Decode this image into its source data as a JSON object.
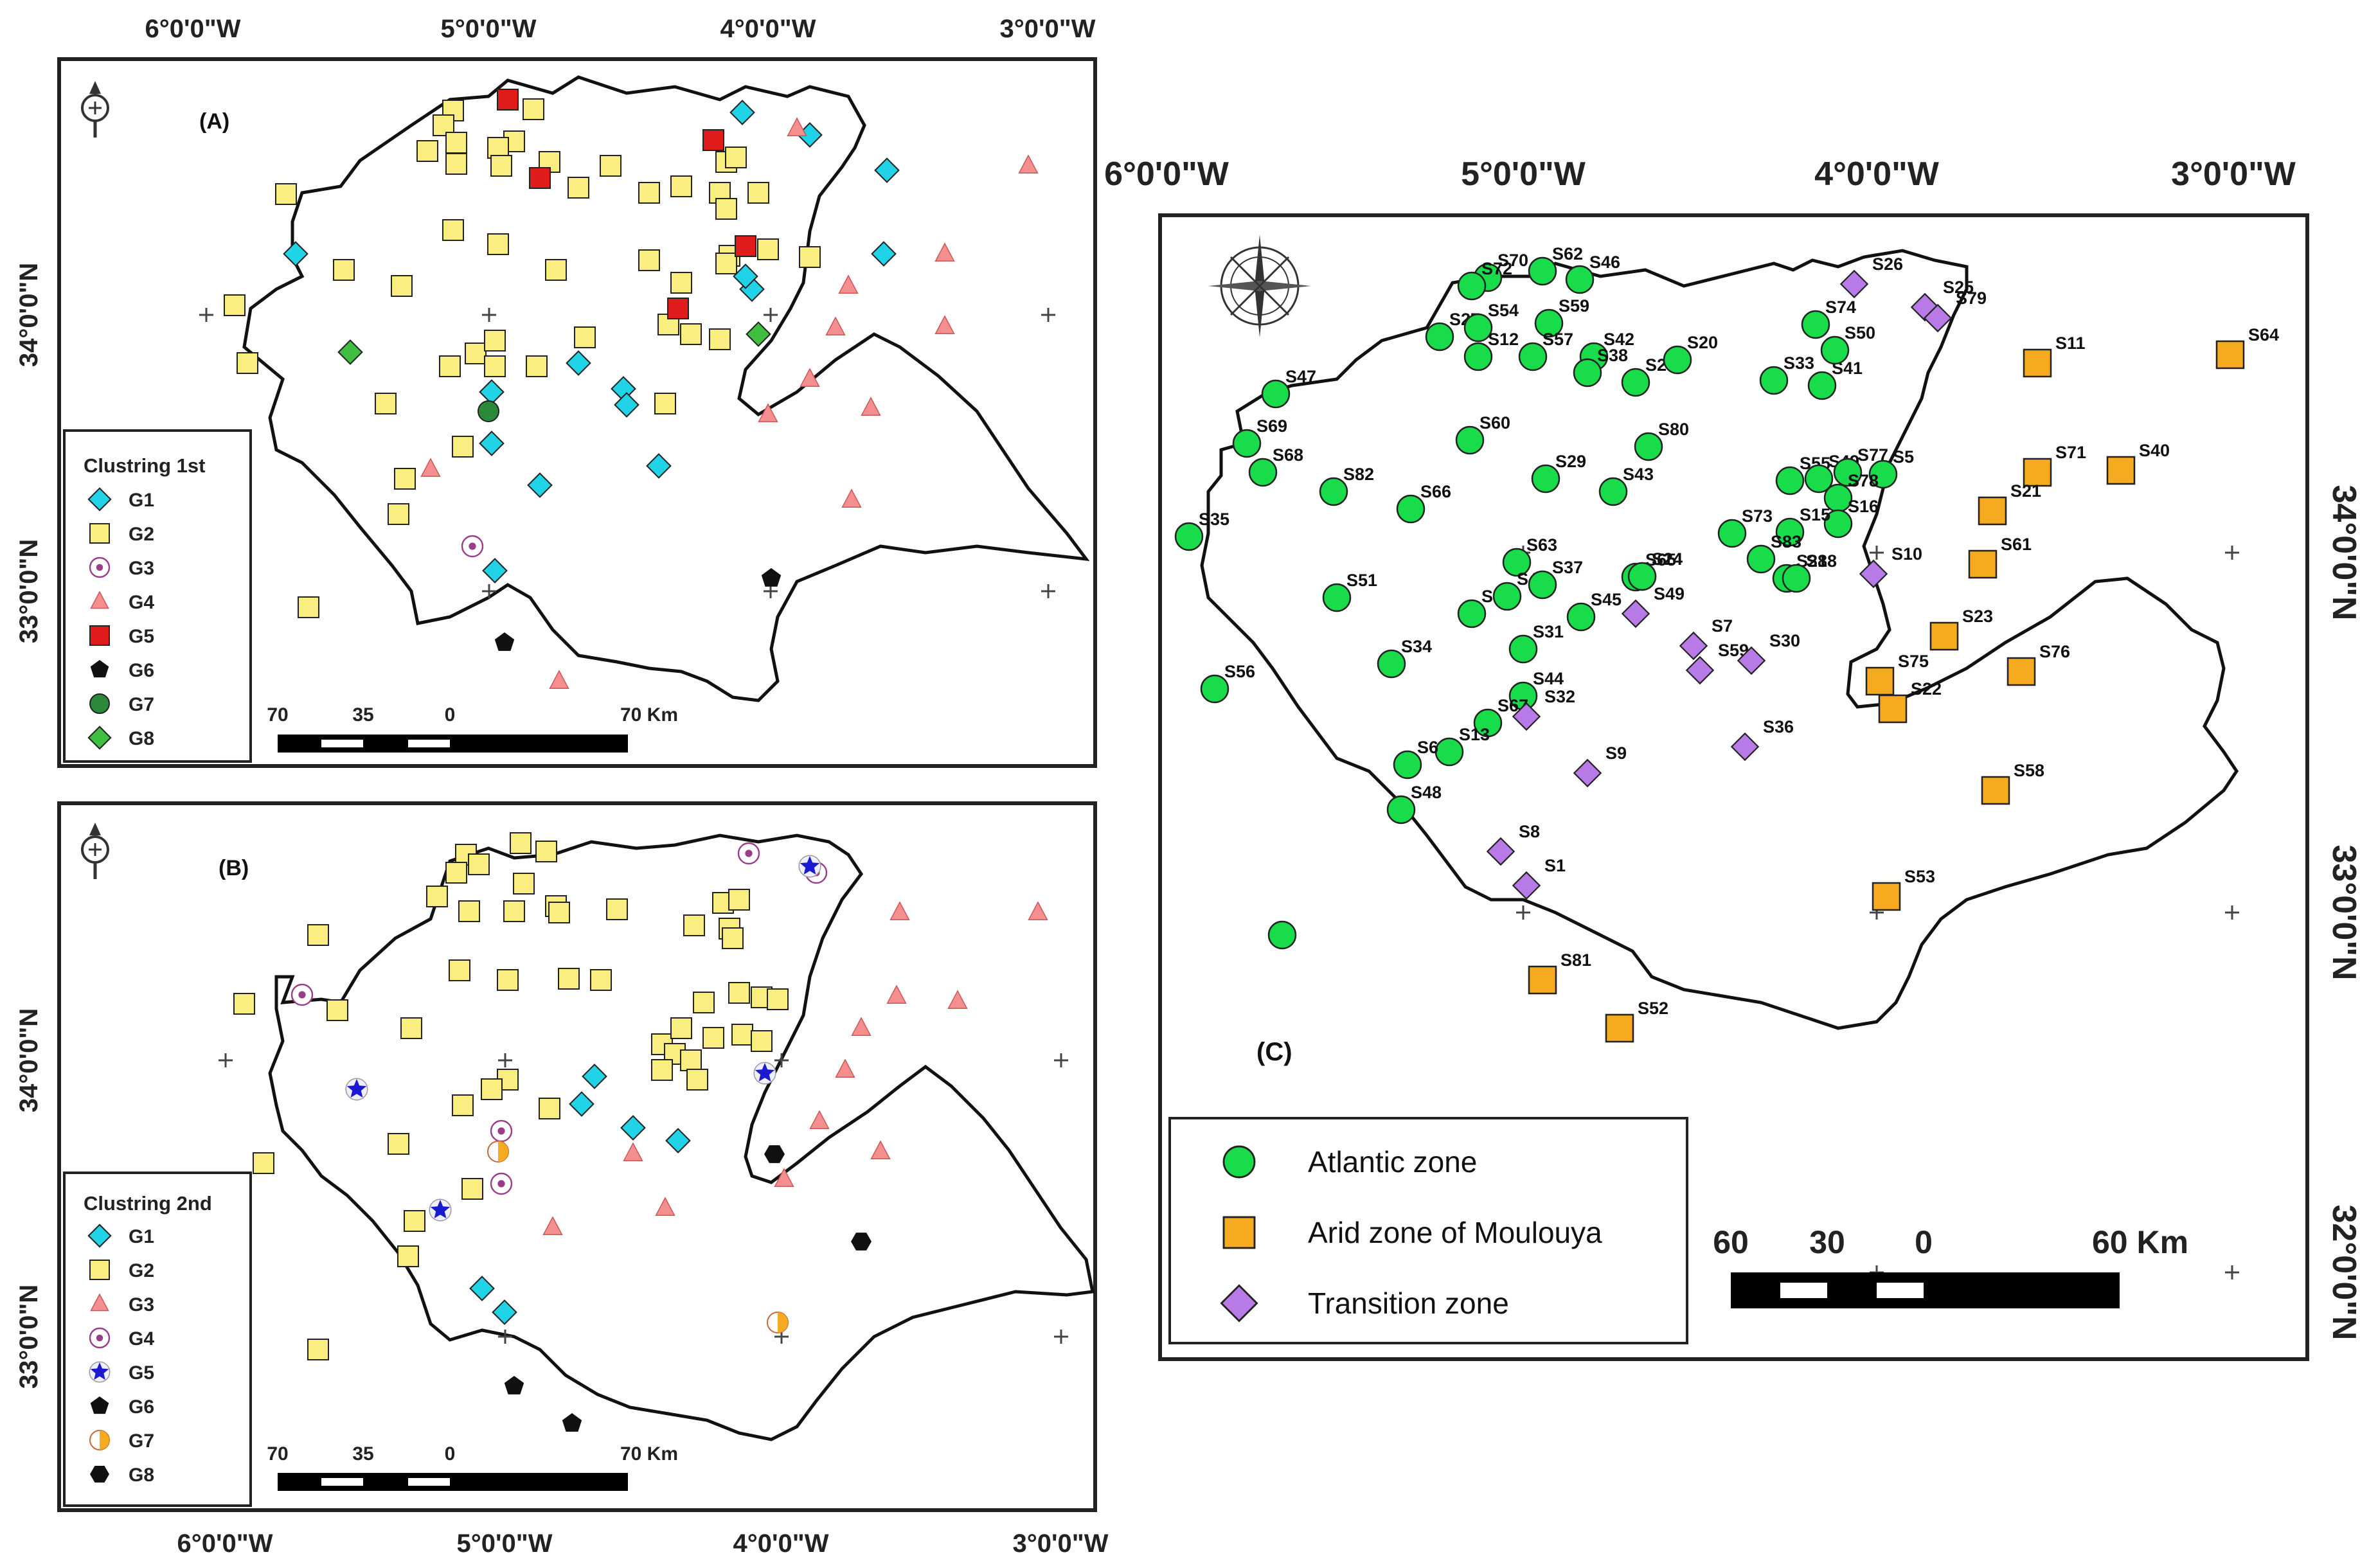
{
  "colors": {
    "cyan": "#21d3e6",
    "yellow": "#fbee80",
    "purple": "#9a3c8a",
    "pink": "#f58f8f",
    "red": "#e01b1b",
    "black": "#111111",
    "dgreen": "#2b8a3a",
    "lgreen": "#3fbf3f",
    "blue": "#1a1ad0",
    "orange": "#f6aa20",
    "violet": "#b77ae6",
    "bgreen": "#18dc4a"
  },
  "map_a": {
    "panel_label": "(A)",
    "top_coords": [
      "6°0'0\"W",
      "5°0'0\"W",
      "4°0'0\"W",
      "3°0'0\"W"
    ],
    "left_coords": [
      "34°0'0\"N",
      "33°0'0\"N"
    ],
    "scale": {
      "ticks": [
        "70",
        "35",
        "0"
      ],
      "end": "70 Km"
    },
    "legend_title": "Clustring 1st",
    "legend": [
      {
        "group": "G1",
        "shape": "diamond",
        "color": "cyan"
      },
      {
        "group": "G2",
        "shape": "square",
        "color": "yellow"
      },
      {
        "group": "G3",
        "shape": "ring",
        "color": "purple"
      },
      {
        "group": "G4",
        "shape": "triangle",
        "color": "pink"
      },
      {
        "group": "G5",
        "shape": "square",
        "color": "red"
      },
      {
        "group": "G6",
        "shape": "pentagon",
        "color": "black"
      },
      {
        "group": "G7",
        "shape": "circle",
        "color": "dgreen"
      },
      {
        "group": "G8",
        "shape": "diamond",
        "color": "lgreen"
      }
    ]
  },
  "map_b": {
    "panel_label": "(B)",
    "bottom_coords": [
      "6°0'0\"W",
      "5°0'0\"W",
      "4°0'0\"W",
      "3°0'0\"W"
    ],
    "left_coords": [
      "34°0'0\"N",
      "33°0'0\"N"
    ],
    "scale": {
      "ticks": [
        "70",
        "35",
        "0"
      ],
      "end": "70 Km"
    },
    "legend_title": "Clustring 2nd",
    "legend": [
      {
        "group": "G1",
        "shape": "diamond",
        "color": "cyan"
      },
      {
        "group": "G2",
        "shape": "square",
        "color": "yellow"
      },
      {
        "group": "G3",
        "shape": "triangle",
        "color": "pink"
      },
      {
        "group": "G4",
        "shape": "ring",
        "color": "purple"
      },
      {
        "group": "G5",
        "shape": "star",
        "color": "blue"
      },
      {
        "group": "G6",
        "shape": "pentagon",
        "color": "black"
      },
      {
        "group": "G7",
        "shape": "halfcircle",
        "color": "orange"
      },
      {
        "group": "G8",
        "shape": "hexagon",
        "color": "black"
      }
    ]
  },
  "map_c": {
    "panel_label": "(C)",
    "top_coords": [
      "6°0'0\"W",
      "5°0'0\"W",
      "4°0'0\"W",
      "3°0'0\"W"
    ],
    "right_coords": [
      "34°0'0\"N",
      "33°0'0\"N",
      "32°0'0\"N"
    ],
    "scale": {
      "ticks": [
        "60",
        "30",
        "0"
      ],
      "end": "60 Km"
    },
    "legend": [
      {
        "label": "Atlantic zone",
        "shape": "circle",
        "color": "bgreen"
      },
      {
        "label": "Arid zone of Moulouya",
        "shape": "square",
        "color": "orange"
      },
      {
        "label": "Transition zone",
        "shape": "diamond",
        "color": "violet"
      }
    ],
    "stations": {
      "atlantic": [
        "S70",
        "S62",
        "S46",
        "S72",
        "S59",
        "S27",
        "S54",
        "S12",
        "S57",
        "S42",
        "S38",
        "S2",
        "S20",
        "S33",
        "S41",
        "S74",
        "S50",
        "S47",
        "S60",
        "S80",
        "S69",
        "S68",
        "S29",
        "S43",
        "S82",
        "S66",
        "S55",
        "S49",
        "S77",
        "S5",
        "S78",
        "S16",
        "S35",
        "S73",
        "S15",
        "S83",
        "S28",
        "S18",
        "S63",
        "S24",
        "S51",
        "S3",
        "S4",
        "S37",
        "S65",
        "S14",
        "S45",
        "S31",
        "S34",
        "S56",
        "S44",
        "S67",
        "S13",
        "S6",
        "S48"
      ],
      "arid": [
        "S11",
        "S64",
        "S71",
        "S40",
        "S21",
        "S61",
        "S23",
        "S75",
        "S22",
        "S76",
        "S58",
        "S53",
        "S81",
        "S52"
      ],
      "transition": [
        "S26",
        "S25",
        "S79",
        "S10",
        "S49",
        "S7",
        "S59",
        "S30",
        "S32",
        "S9",
        "S36",
        "S8",
        "S1"
      ]
    }
  }
}
